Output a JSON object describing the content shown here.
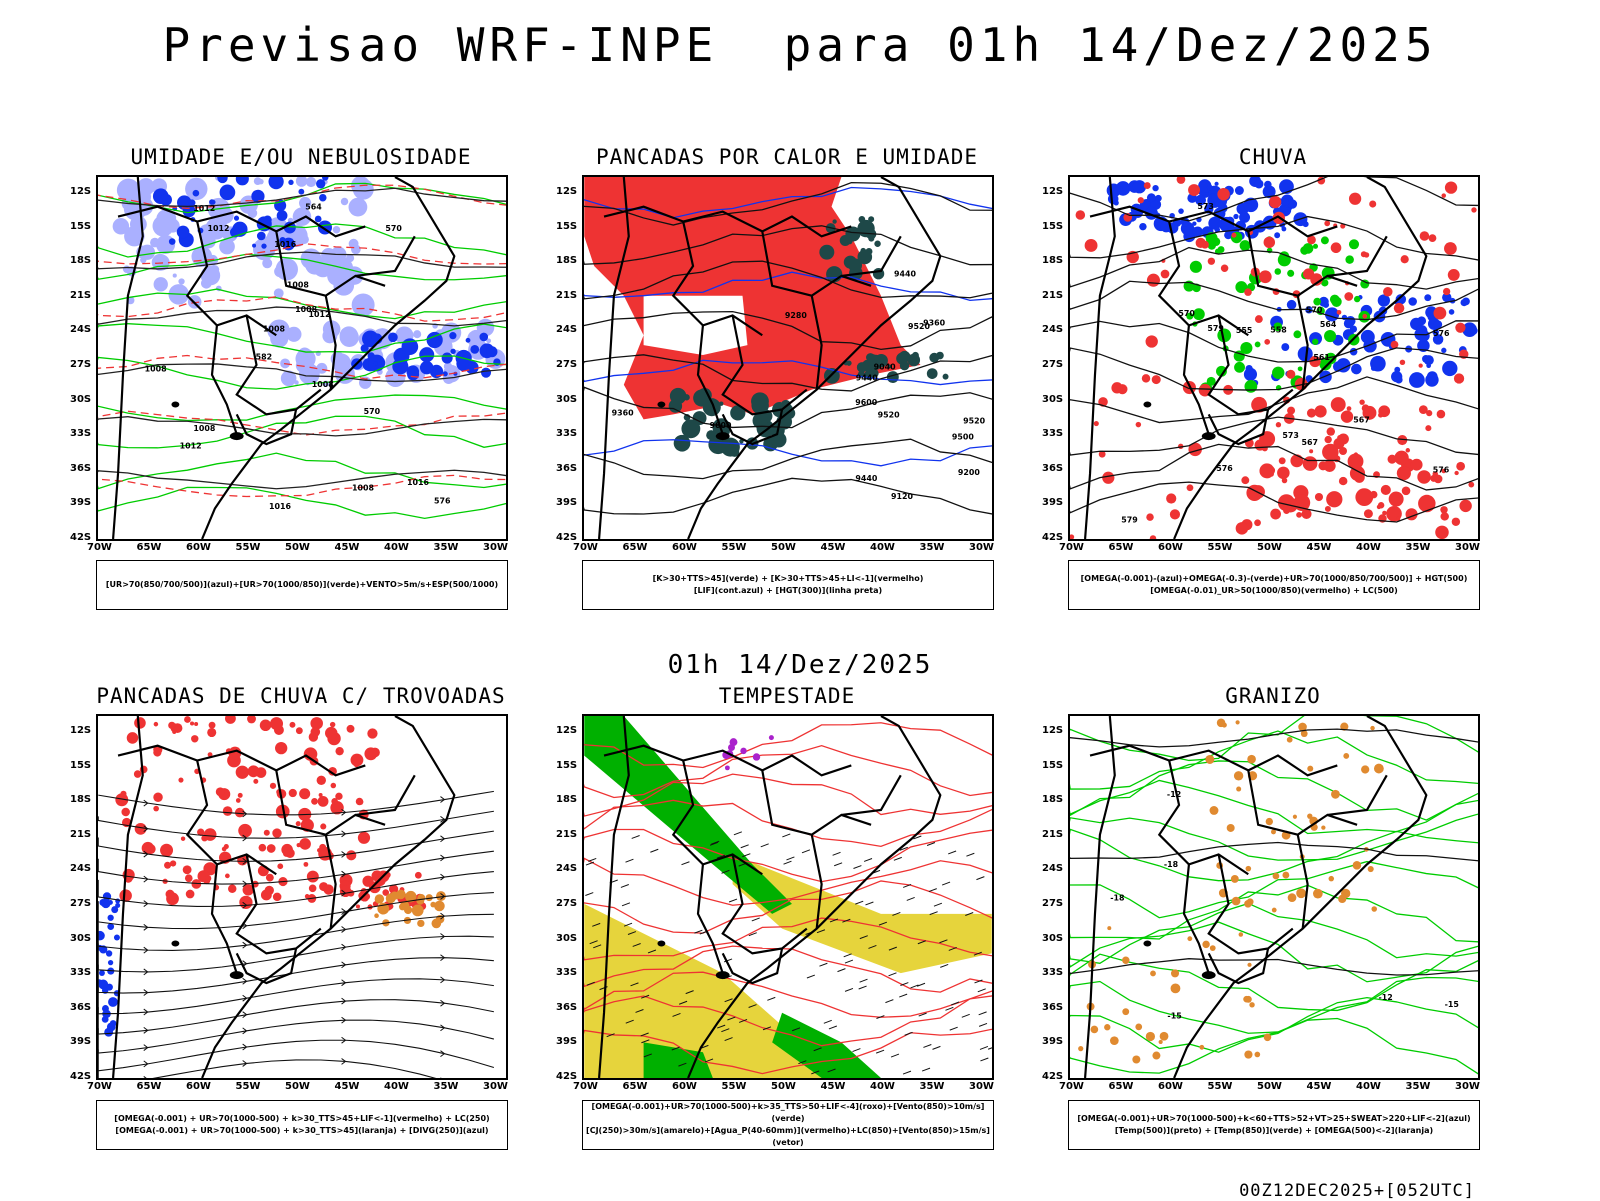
{
  "title": "Previsao WRF-INPE  para 01h 14/Dez/2025",
  "mid_time": "01h 14/Dez/2025",
  "footer": "00Z12DEC2025+[052UTC]",
  "lat_labels": [
    "12S",
    "15S",
    "18S",
    "21S",
    "24S",
    "27S",
    "30S",
    "33S",
    "36S",
    "39S",
    "42S"
  ],
  "lon_labels": [
    "70W",
    "65W",
    "60W",
    "55W",
    "50W",
    "45W",
    "40W",
    "35W",
    "30W"
  ],
  "panels": [
    {
      "title": "UMIDADE E/OU NEBULOSIDADE",
      "legend": [
        "[UR>70(850/700/500)](azul)+[UR>70(1000/850)](verde)+VENTO>5m/s+ESP(500/1000)"
      ]
    },
    {
      "title": "PANCADAS POR CALOR E UMIDADE",
      "legend": [
        "[K>30+TTS>45](verde) + [K>30+TTS>45+LI<-1](vermelho)",
        "[LIF](cont.azul) + [HGT(300)](linha preta)"
      ]
    },
    {
      "title": "CHUVA",
      "legend": [
        "[OMEGA(-0.001)-(azul)+OMEGA(-0.3)-(verde)+UR>70(1000/850/700/500)] + HGT(500)",
        "[OMEGA(-0.01)_UR>50(1000/850)(vermelho) + LC(500)"
      ]
    },
    {
      "title": "PANCADAS DE CHUVA C/ TROVOADAS",
      "legend": [
        "[OMEGA(-0.001) + UR>70(1000-500) + k>30_TTS>45+LIF<-1](vermelho) + LC(250)",
        "[OMEGA(-0.001) + UR>70(1000-500) + k>30_TTS>45](laranja) + [DIVG(250)](azul)"
      ]
    },
    {
      "title": "TEMPESTADE",
      "legend": [
        "[OMEGA(-0.001)+UR>70(1000-500)+k>35_TTS>50+LIF<-4](roxo)+[Vento(850)>10m/s](verde)",
        "[CJ(250)>30m/s](amarelo)+[Agua_P(40-60mm)](vermelho)+LC(850)+[Vento(850)>15m/s](vetor)"
      ]
    },
    {
      "title": "GRANIZO",
      "legend": [
        "[OMEGA(-0.001)+UR>70(1000-500)+k<60+TTS>52+VT>25+SWEAT>220+LIF<-2](azul)",
        "[Temp(500)](preto) + [Temp(850)](verde) + [OMEGA(500)<-2](laranja)"
      ]
    }
  ],
  "contour_labels": {
    "p1": [
      "1012",
      "1008",
      "1008",
      "1008",
      "1012",
      "1012",
      "1016",
      "1008",
      "1008",
      "1012",
      "1016",
      "576",
      "570",
      "570",
      "564",
      "582",
      "1008",
      "1008",
      "1016"
    ],
    "p2": [
      "9600",
      "9520",
      "9520",
      "9500",
      "9440",
      "9440",
      "9360",
      "9280",
      "9200",
      "9120",
      "9040",
      "9440",
      "9360",
      "9520",
      "9600"
    ],
    "p3": [
      "579",
      "576",
      "573",
      "570",
      "567",
      "564",
      "561",
      "558",
      "555",
      "573",
      "570",
      "576",
      "579",
      "576",
      "567"
    ],
    "p6": [
      "-18",
      "-15",
      "-12",
      "-18",
      "-12",
      "-15"
    ]
  },
  "colors": {
    "green": "#00cc00",
    "red": "#ee3333",
    "blue": "#1133ee",
    "lightblue": "#aab0ff",
    "darkgreen": "#1e4848",
    "yellow": "#e6d43c",
    "orange": "#e08a30",
    "purple": "#aa22cc"
  }
}
